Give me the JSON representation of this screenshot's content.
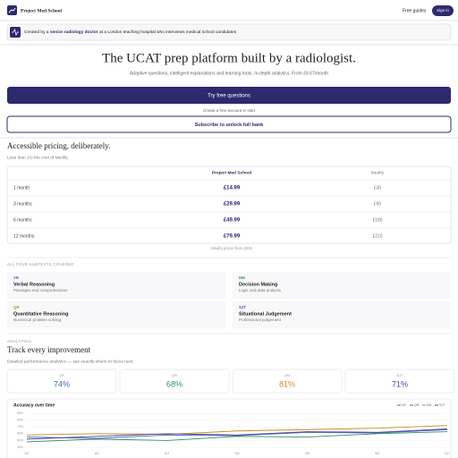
{
  "header": {
    "brand": "Project Med School",
    "nav": [
      "Free guides",
      "Sign in"
    ]
  },
  "banner": {
    "before": "Created by a",
    "bold": "senior radiology doctor",
    "after": "at a London teaching hospital who interviews medical school candidates"
  },
  "hero": {
    "title": "The UCAT prep platform built by a radiologist.",
    "subtitle": "Adaptive questions, intelligent explanations and learning tools. In-depth analytics.  From £6.67/month",
    "cta": "Try free questions",
    "note": "Create a free account to start",
    "secondary": "Subscribe to unlock full bank"
  },
  "pricing": {
    "title": "Accessible pricing, deliberately.",
    "subtitle": "Less than 1/2 the cost of Medify",
    "columns": [
      "Project Med School",
      "Medify"
    ],
    "rows": [
      [
        "1 month",
        "£14.99",
        "£30"
      ],
      [
        "3 months",
        "£29.99",
        "£90"
      ],
      [
        "6 months",
        "£49.99",
        "£180"
      ],
      [
        "12 months",
        "£79.99",
        "£210"
      ]
    ],
    "footnote": "Medify prices from 2026"
  },
  "subtests": {
    "heading": "ALL FOUR SUBTESTS COVERED",
    "items": [
      {
        "code": "VR",
        "name": "Verbal Reasoning",
        "desc": "Passages and comprehension"
      },
      {
        "code": "DM",
        "name": "Decision Making",
        "desc": "Logic and data analysis"
      },
      {
        "code": "QR",
        "name": "Quantitative Reasoning",
        "desc": "Numerical problem solving"
      },
      {
        "code": "SJT",
        "name": "Situational Judgement",
        "desc": "Professional judgement"
      }
    ]
  },
  "analytics": {
    "eyebrow": "ANALYTICS",
    "title": "Track every improvement",
    "subtitle": "Detailed performance analytics — see exactly where to focus next.",
    "stats": [
      {
        "label": "VR",
        "value": "74%"
      },
      {
        "label": "QR",
        "value": "68%"
      },
      {
        "label": "DM",
        "value": "81%"
      },
      {
        "label": "SJT",
        "value": "71%"
      }
    ]
  },
  "chart_data": {
    "type": "line",
    "title": "Accuracy over time",
    "categories": [
      "W1",
      "W2",
      "W3",
      "W4",
      "W5",
      "W6",
      "W7"
    ],
    "series": [
      {
        "name": "VR",
        "color": "#3d6cb0",
        "values": [
          55,
          53,
          58,
          57,
          62,
          61,
          66
        ]
      },
      {
        "name": "QR",
        "color": "#2f8f6e",
        "values": [
          48,
          52,
          50,
          56,
          55,
          60,
          63
        ]
      },
      {
        "name": "DM",
        "color": "#c98a2a",
        "values": [
          58,
          60,
          59,
          64,
          66,
          68,
          72
        ]
      },
      {
        "name": "SJT",
        "color": "#5b3f9c",
        "values": [
          52,
          56,
          60,
          58,
          63,
          62,
          67
        ]
      }
    ],
    "ylim": [
      40,
      90
    ],
    "yticks": [
      {
        "value": 40,
        "label": "40%"
      },
      {
        "value": 50,
        "label": "50%"
      },
      {
        "value": 60,
        "label": "60%"
      },
      {
        "value": 70,
        "label": "70%"
      },
      {
        "value": 80,
        "label": "80%"
      },
      {
        "value": 90,
        "label": "90%"
      }
    ],
    "grid": true,
    "legend": "top-right"
  }
}
